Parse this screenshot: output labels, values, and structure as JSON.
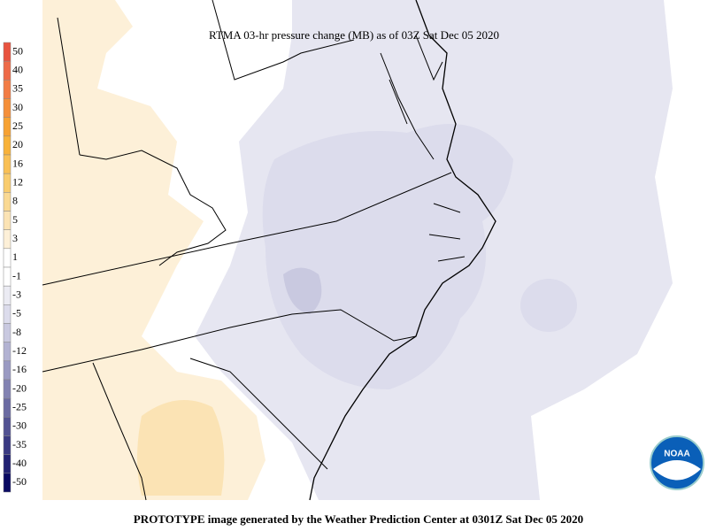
{
  "header": {
    "title": "RTMA 03-hr pressure change (MB) as of 03Z Sat Dec 05 2020"
  },
  "footer": {
    "text": "PROTOTYPE image generated by the Weather Prediction Center at 0301Z Sat Dec 05 2020"
  },
  "legend": {
    "items": [
      {
        "label": "50",
        "color": "#e8533f"
      },
      {
        "label": "40",
        "color": "#ee6a48"
      },
      {
        "label": "35",
        "color": "#f27c45"
      },
      {
        "label": "30",
        "color": "#f58f3a"
      },
      {
        "label": "25",
        "color": "#f7a233"
      },
      {
        "label": "20",
        "color": "#f8b23a"
      },
      {
        "label": "16",
        "color": "#f9c055"
      },
      {
        "label": "12",
        "color": "#f9cc6e"
      },
      {
        "label": "8",
        "color": "#fad993"
      },
      {
        "label": "5",
        "color": "#fbe3b4"
      },
      {
        "label": "3",
        "color": "#fdf0d8"
      },
      {
        "label": "1",
        "color": "#ffffff"
      },
      {
        "label": "-1",
        "color": "#ffffff"
      },
      {
        "label": "-3",
        "color": "#ebebf3"
      },
      {
        "label": "-5",
        "color": "#dcdcec"
      },
      {
        "label": "-8",
        "color": "#c9c9e0"
      },
      {
        "label": "-12",
        "color": "#b2b2d2"
      },
      {
        "label": "-16",
        "color": "#9a9ac2"
      },
      {
        "label": "-20",
        "color": "#8282b2"
      },
      {
        "label": "-25",
        "color": "#6a6aa2"
      },
      {
        "label": "-30",
        "color": "#525292"
      },
      {
        "label": "-35",
        "color": "#3a3a82"
      },
      {
        "label": "-40",
        "color": "#222272"
      },
      {
        "label": "-50",
        "color": "#0a0a62"
      }
    ]
  },
  "logo": {
    "text": "NOAA"
  }
}
